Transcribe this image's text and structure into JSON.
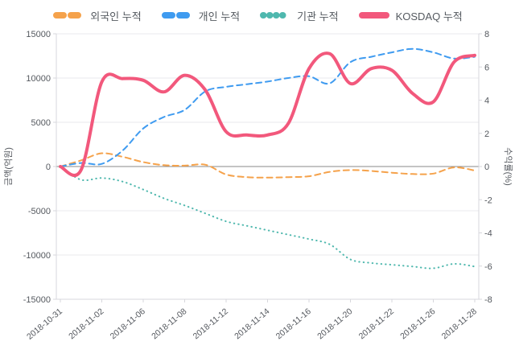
{
  "chart_data": {
    "type": "line",
    "title": "",
    "x": [
      "2018-10-31",
      "2018-11-01",
      "2018-11-02",
      "2018-11-05",
      "2018-11-06",
      "2018-11-07",
      "2018-11-08",
      "2018-11-09",
      "2018-11-12",
      "2018-11-13",
      "2018-11-14",
      "2018-11-15",
      "2018-11-16",
      "2018-11-19",
      "2018-11-20",
      "2018-11-21",
      "2018-11-22",
      "2018-11-23",
      "2018-11-26",
      "2018-11-27",
      "2018-11-28"
    ],
    "x_tick_labels": [
      "2018-10-31",
      "2018-11-02",
      "2018-11-06",
      "2018-11-08",
      "2018-11-12",
      "2018-11-14",
      "2018-11-16",
      "2018-11-20",
      "2018-11-22",
      "2018-11-26",
      "2018-11-28"
    ],
    "series": [
      {
        "name": "외국인 누적",
        "key": "foreign",
        "axis": "left",
        "color": "#f5a24b",
        "style": "dashed",
        "width": 2,
        "values": [
          0,
          700,
          1500,
          1100,
          500,
          150,
          100,
          200,
          -900,
          -1200,
          -1250,
          -1200,
          -1100,
          -600,
          -400,
          -500,
          -700,
          -850,
          -800,
          -100,
          -450
        ]
      },
      {
        "name": "개인 누적",
        "key": "individual",
        "axis": "left",
        "color": "#3f9bf0",
        "style": "dashed",
        "width": 2,
        "values": [
          0,
          400,
          300,
          1800,
          4300,
          5600,
          6400,
          8500,
          9000,
          9300,
          9600,
          10000,
          10200,
          9400,
          11800,
          12400,
          12900,
          13300,
          12900,
          12200,
          12400
        ]
      },
      {
        "name": "기관 누적",
        "key": "institution",
        "axis": "left",
        "color": "#4fb8ae",
        "style": "dotted",
        "width": 2,
        "values": [
          0,
          -1500,
          -1300,
          -1700,
          -2600,
          -3600,
          -4400,
          -5300,
          -6200,
          -6700,
          -7200,
          -7700,
          -8200,
          -8800,
          -10500,
          -10900,
          -11100,
          -11300,
          -11500,
          -11000,
          -11300
        ]
      },
      {
        "name": "KOSDAQ 누적",
        "key": "kosdaq",
        "axis": "right",
        "color": "#f2587c",
        "style": "solid",
        "width": 4,
        "values": [
          0,
          -0.2,
          5.1,
          5.3,
          5.2,
          4.5,
          5.5,
          4.6,
          2.1,
          1.9,
          1.9,
          2.6,
          5.9,
          6.8,
          5.0,
          5.9,
          5.8,
          4.4,
          3.9,
          6.3,
          6.7
        ]
      }
    ],
    "left_axis": {
      "label": "금액(억원)",
      "min": -15000,
      "max": 15000,
      "ticks": [
        15000,
        10000,
        5000,
        0,
        -5000,
        -10000,
        -15000
      ]
    },
    "right_axis": {
      "label": "수익률(%)",
      "min": -8,
      "max": 8,
      "ticks": [
        8,
        6,
        4,
        2,
        0,
        -2,
        -4,
        -6,
        -8
      ]
    },
    "grid": true,
    "legend_position": "top",
    "colors": {
      "grid": "#e9e9ee",
      "zero_line": "#8a8a8a",
      "axis": "#d7d7dc",
      "tick_text": "#55595f"
    }
  }
}
